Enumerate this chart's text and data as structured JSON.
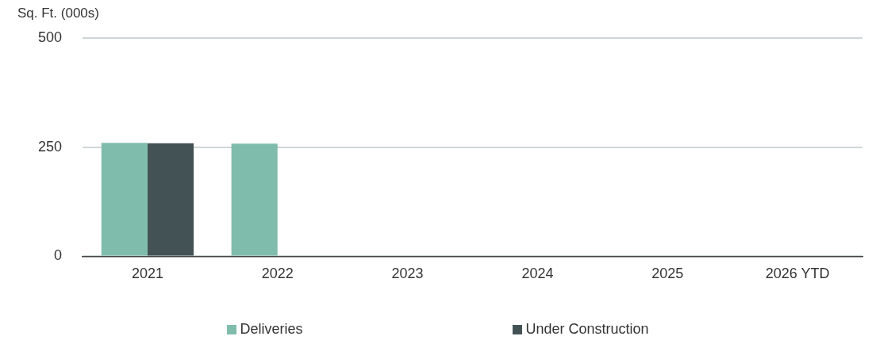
{
  "chart_data": {
    "type": "bar",
    "ylabel": "Sq. Ft. (000s)",
    "categories": [
      "2021",
      "2022",
      "2023",
      "2024",
      "2025",
      "2026 YTD"
    ],
    "series": [
      {
        "name": "Deliveries",
        "color": "#80bcac",
        "values": [
          260,
          258,
          0,
          0,
          0,
          0
        ]
      },
      {
        "name": "Under Construction",
        "color": "#435254",
        "values": [
          259,
          0,
          0,
          0,
          0,
          0
        ]
      }
    ],
    "ylim": [
      0,
      500
    ],
    "yticks": [
      0,
      250,
      500
    ],
    "grid": "y",
    "legend": "bottom"
  }
}
